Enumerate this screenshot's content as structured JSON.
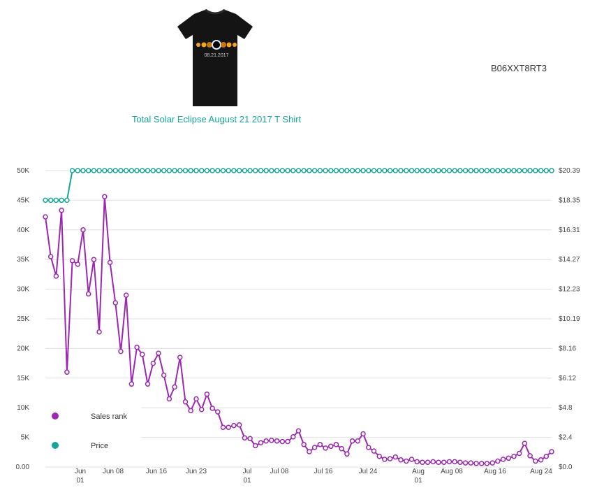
{
  "product": {
    "title": "Total Solar Eclipse August 21 2017 T Shirt",
    "asin": "B06XXT8RT3",
    "image_text": "08.21.2017"
  },
  "legend": {
    "items": [
      {
        "label": "Sales rank",
        "color": "#9c27b0"
      },
      {
        "label": "Price",
        "color": "#16a49a"
      }
    ]
  },
  "chart_data": {
    "type": "line",
    "x_tick_labels": [
      {
        "top": "Jun",
        "bottom": "01"
      },
      {
        "top": "Jun 08",
        "bottom": ""
      },
      {
        "top": "Jun 16",
        "bottom": ""
      },
      {
        "top": "Jun 23",
        "bottom": ""
      },
      {
        "top": "Jul",
        "bottom": "01"
      },
      {
        "top": "Jul 08",
        "bottom": ""
      },
      {
        "top": "Jul 16",
        "bottom": ""
      },
      {
        "top": "Jul 24",
        "bottom": ""
      },
      {
        "top": "Aug",
        "bottom": "01"
      },
      {
        "top": "Aug 08",
        "bottom": ""
      },
      {
        "top": "Aug 16",
        "bottom": ""
      },
      {
        "top": "Aug 24",
        "bottom": ""
      }
    ],
    "y_left_ticks": [
      "0.00",
      "5K",
      "10K",
      "15K",
      "20K",
      "25K",
      "30K",
      "35K",
      "40K",
      "45K",
      "50K"
    ],
    "y_right_ticks": [
      "$0.0",
      "$2.4",
      "$4.8",
      "$6.12",
      "$8.16",
      "$10.19",
      "$12.23",
      "$14.27",
      "$16.31",
      "$18.35",
      "$20.39"
    ],
    "ylim_left": [
      0,
      50000
    ],
    "ylim_right": [
      0,
      20.39
    ],
    "grid": true,
    "legend_position": "bottom-left",
    "series": [
      {
        "name": "Sales rank",
        "color": "#9c27b0",
        "axis": "left",
        "values": [
          42200,
          35500,
          32200,
          43300,
          16000,
          34800,
          34200,
          40000,
          29200,
          35000,
          22800,
          45600,
          34500,
          27700,
          19500,
          29000,
          14000,
          20200,
          19000,
          14000,
          17500,
          19200,
          15500,
          11500,
          13500,
          18500,
          11000,
          9500,
          11500,
          9700,
          12300,
          9900,
          9300,
          6700,
          6700,
          7000,
          7100,
          4900,
          4800,
          3600,
          4100,
          4400,
          4500,
          4400,
          4300,
          4300,
          5100,
          6100,
          3800,
          2600,
          3300,
          3800,
          3200,
          3500,
          3800,
          3100,
          2200,
          4400,
          4400,
          5600,
          3300,
          2700,
          1800,
          1300,
          1400,
          1700,
          1200,
          1000,
          1300,
          900,
          800,
          800,
          900,
          800,
          800,
          900,
          900,
          800,
          700,
          700,
          600,
          600,
          600,
          700,
          1000,
          1300,
          1500,
          1800,
          2300,
          4000,
          1900,
          1000,
          1200,
          1800,
          2600
        ]
      },
      {
        "name": "Price",
        "color": "#16a49a",
        "axis": "right",
        "values": [
          18.35,
          18.35,
          18.35,
          18.35,
          18.35,
          20.39,
          20.39,
          20.39,
          20.39,
          20.39,
          20.39,
          20.39,
          20.39,
          20.39,
          20.39,
          20.39,
          20.39,
          20.39,
          20.39,
          20.39,
          20.39,
          20.39,
          20.39,
          20.39,
          20.39,
          20.39,
          20.39,
          20.39,
          20.39,
          20.39,
          20.39,
          20.39,
          20.39,
          20.39,
          20.39,
          20.39,
          20.39,
          20.39,
          20.39,
          20.39,
          20.39,
          20.39,
          20.39,
          20.39,
          20.39,
          20.39,
          20.39,
          20.39,
          20.39,
          20.39,
          20.39,
          20.39,
          20.39,
          20.39,
          20.39,
          20.39,
          20.39,
          20.39,
          20.39,
          20.39,
          20.39,
          20.39,
          20.39,
          20.39,
          20.39,
          20.39,
          20.39,
          20.39,
          20.39,
          20.39,
          20.39,
          20.39,
          20.39,
          20.39,
          20.39,
          20.39,
          20.39,
          20.39,
          20.39,
          20.39,
          20.39,
          20.39,
          20.39,
          20.39,
          20.39,
          20.39,
          20.39,
          20.39,
          20.39,
          20.39,
          20.39,
          20.39,
          20.39,
          20.39,
          20.39
        ]
      }
    ]
  }
}
